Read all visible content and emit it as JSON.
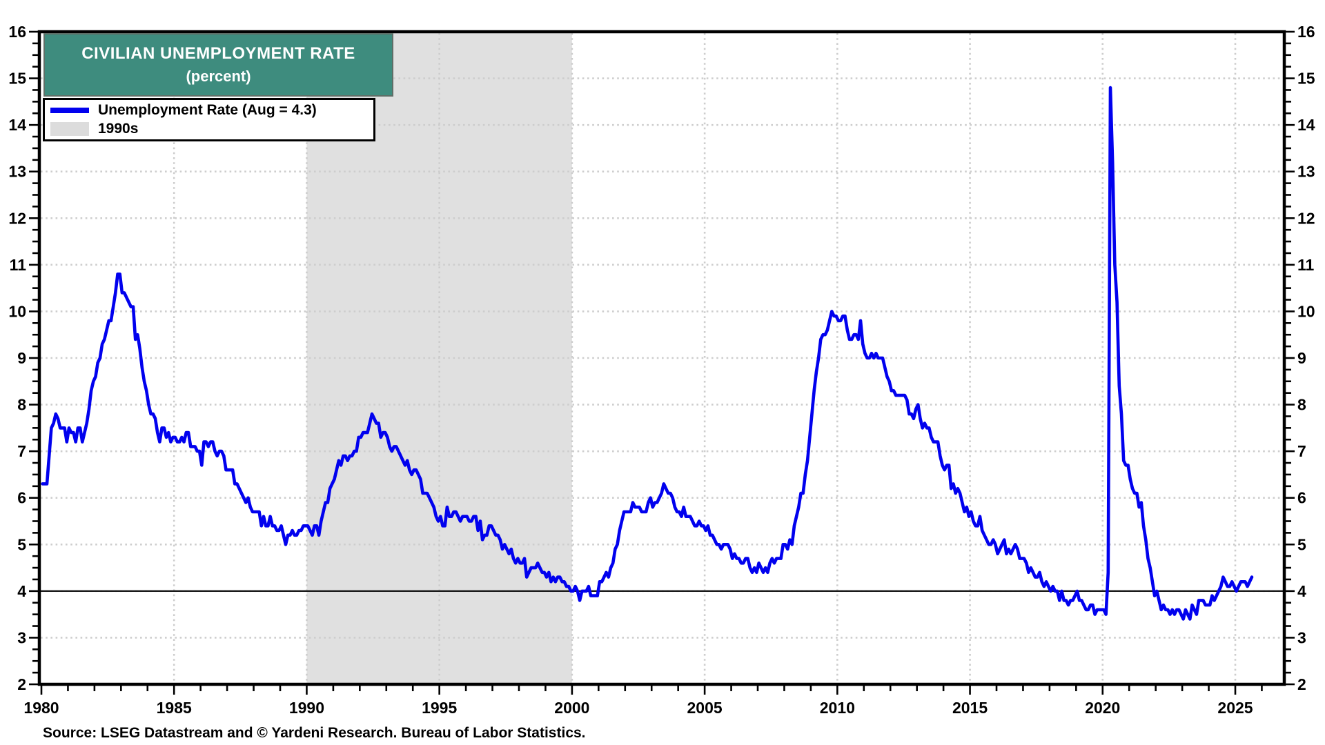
{
  "title": {
    "line1": "CIVILIAN UNEMPLOYMENT RATE",
    "line2": "(percent)"
  },
  "legend": {
    "items": [
      {
        "label": "Unemployment Rate (Aug = 4.3)",
        "swatch": "line",
        "color": "#0101ee"
      },
      {
        "label": "1990s",
        "swatch": "area",
        "color": "#dcdcdc"
      }
    ]
  },
  "source": "Source: LSEG Datastream and © Yardeni Research. Bureau of Labor Statistics.",
  "colors": {
    "title_bg": "#3e8c7e",
    "line": "#0101ee",
    "band": "#e0e0e0",
    "grid": "#cdcdcd",
    "frame": "#000000",
    "reference_line": "#1a1a1a"
  },
  "chart_data": {
    "type": "line",
    "title": "CIVILIAN UNEMPLOYMENT RATE (percent)",
    "legend_position": "top-left",
    "grid": "dotted",
    "x_axis": {
      "min": 1979.9,
      "max": 2026.85,
      "major_ticks": [
        1980,
        1985,
        1990,
        1995,
        2000,
        2005,
        2010,
        2015,
        2020,
        2025
      ],
      "minor_tick_interval_years": 1
    },
    "y_axis": {
      "min": 2,
      "max": 16,
      "major_tick_interval": 1,
      "minor_tick_interval": 0.25,
      "labels_on_both_sides": true
    },
    "reference_line_y": 4,
    "shaded_band": {
      "label": "1990s",
      "x_from": 1990,
      "x_to": 2000
    },
    "series": [
      {
        "name": "Unemployment Rate",
        "frequency": "monthly",
        "start_year": 1980,
        "start_month": 1,
        "end_label": "Aug = 4.3",
        "values": [
          6.3,
          6.3,
          6.3,
          6.9,
          7.5,
          7.6,
          7.8,
          7.7,
          7.5,
          7.5,
          7.5,
          7.2,
          7.5,
          7.4,
          7.4,
          7.2,
          7.5,
          7.5,
          7.2,
          7.4,
          7.6,
          7.9,
          8.3,
          8.5,
          8.6,
          8.9,
          9.0,
          9.3,
          9.4,
          9.6,
          9.8,
          9.8,
          10.1,
          10.4,
          10.8,
          10.8,
          10.4,
          10.4,
          10.3,
          10.2,
          10.1,
          10.1,
          9.4,
          9.5,
          9.2,
          8.8,
          8.5,
          8.3,
          8.0,
          7.8,
          7.8,
          7.7,
          7.4,
          7.2,
          7.5,
          7.5,
          7.3,
          7.4,
          7.2,
          7.3,
          7.3,
          7.2,
          7.2,
          7.3,
          7.2,
          7.4,
          7.4,
          7.1,
          7.1,
          7.1,
          7.0,
          7.0,
          6.7,
          7.2,
          7.2,
          7.1,
          7.2,
          7.2,
          7.0,
          6.9,
          7.0,
          7.0,
          6.9,
          6.6,
          6.6,
          6.6,
          6.6,
          6.3,
          6.3,
          6.2,
          6.1,
          6.0,
          5.9,
          6.0,
          5.8,
          5.7,
          5.7,
          5.7,
          5.7,
          5.4,
          5.6,
          5.4,
          5.4,
          5.6,
          5.4,
          5.4,
          5.3,
          5.3,
          5.4,
          5.2,
          5.0,
          5.2,
          5.2,
          5.3,
          5.2,
          5.2,
          5.3,
          5.3,
          5.4,
          5.4,
          5.4,
          5.3,
          5.2,
          5.4,
          5.4,
          5.2,
          5.5,
          5.7,
          5.9,
          5.9,
          6.2,
          6.3,
          6.4,
          6.6,
          6.8,
          6.7,
          6.9,
          6.9,
          6.8,
          6.9,
          6.9,
          7.0,
          7.0,
          7.3,
          7.3,
          7.4,
          7.4,
          7.4,
          7.6,
          7.8,
          7.7,
          7.6,
          7.6,
          7.3,
          7.4,
          7.4,
          7.3,
          7.1,
          7.0,
          7.1,
          7.1,
          7.0,
          6.9,
          6.8,
          6.7,
          6.8,
          6.6,
          6.5,
          6.6,
          6.6,
          6.5,
          6.4,
          6.1,
          6.1,
          6.1,
          6.0,
          5.9,
          5.8,
          5.6,
          5.5,
          5.6,
          5.4,
          5.4,
          5.8,
          5.6,
          5.6,
          5.7,
          5.7,
          5.6,
          5.5,
          5.6,
          5.6,
          5.6,
          5.5,
          5.5,
          5.6,
          5.6,
          5.3,
          5.5,
          5.1,
          5.2,
          5.2,
          5.4,
          5.4,
          5.3,
          5.2,
          5.2,
          5.1,
          4.9,
          5.0,
          4.9,
          4.8,
          4.9,
          4.7,
          4.6,
          4.7,
          4.6,
          4.6,
          4.7,
          4.3,
          4.4,
          4.5,
          4.5,
          4.5,
          4.6,
          4.5,
          4.4,
          4.4,
          4.3,
          4.4,
          4.2,
          4.3,
          4.2,
          4.3,
          4.3,
          4.2,
          4.2,
          4.1,
          4.1,
          4.0,
          4.0,
          4.1,
          4.0,
          3.8,
          4.0,
          4.0,
          4.0,
          4.1,
          3.9,
          3.9,
          3.9,
          3.9,
          4.2,
          4.2,
          4.3,
          4.4,
          4.3,
          4.5,
          4.6,
          4.9,
          5.0,
          5.3,
          5.5,
          5.7,
          5.7,
          5.7,
          5.7,
          5.9,
          5.8,
          5.8,
          5.8,
          5.7,
          5.7,
          5.7,
          5.9,
          6.0,
          5.8,
          5.9,
          5.9,
          6.0,
          6.1,
          6.3,
          6.2,
          6.1,
          6.1,
          6.0,
          5.8,
          5.7,
          5.7,
          5.6,
          5.8,
          5.6,
          5.6,
          5.6,
          5.5,
          5.4,
          5.4,
          5.5,
          5.4,
          5.4,
          5.3,
          5.4,
          5.2,
          5.2,
          5.1,
          5.0,
          5.0,
          4.9,
          5.0,
          5.0,
          5.0,
          4.9,
          4.7,
          4.8,
          4.7,
          4.7,
          4.6,
          4.6,
          4.7,
          4.7,
          4.5,
          4.4,
          4.5,
          4.4,
          4.6,
          4.5,
          4.4,
          4.5,
          4.4,
          4.6,
          4.7,
          4.6,
          4.7,
          4.7,
          4.7,
          5.0,
          5.0,
          4.9,
          5.1,
          5.0,
          5.4,
          5.6,
          5.8,
          6.1,
          6.1,
          6.5,
          6.8,
          7.3,
          7.8,
          8.3,
          8.7,
          9.0,
          9.4,
          9.5,
          9.5,
          9.6,
          9.8,
          10.0,
          9.9,
          9.9,
          9.8,
          9.8,
          9.9,
          9.9,
          9.6,
          9.4,
          9.4,
          9.5,
          9.5,
          9.4,
          9.8,
          9.3,
          9.1,
          9.0,
          9.0,
          9.1,
          9.0,
          9.1,
          9.0,
          9.0,
          9.0,
          8.8,
          8.6,
          8.5,
          8.3,
          8.3,
          8.2,
          8.2,
          8.2,
          8.2,
          8.2,
          8.1,
          7.8,
          7.8,
          7.7,
          7.9,
          8.0,
          7.7,
          7.5,
          7.6,
          7.5,
          7.5,
          7.3,
          7.2,
          7.2,
          7.2,
          6.9,
          6.7,
          6.6,
          6.7,
          6.7,
          6.2,
          6.3,
          6.1,
          6.2,
          6.1,
          5.9,
          5.7,
          5.8,
          5.6,
          5.7,
          5.5,
          5.4,
          5.4,
          5.6,
          5.3,
          5.2,
          5.1,
          5.0,
          5.0,
          5.1,
          5.0,
          4.8,
          4.9,
          5.0,
          5.1,
          4.8,
          4.9,
          4.8,
          4.9,
          5.0,
          4.9,
          4.7,
          4.7,
          4.7,
          4.6,
          4.4,
          4.5,
          4.4,
          4.3,
          4.3,
          4.4,
          4.2,
          4.1,
          4.2,
          4.1,
          4.0,
          4.1,
          4.0,
          4.0,
          3.8,
          4.0,
          3.8,
          3.8,
          3.7,
          3.8,
          3.8,
          3.9,
          4.0,
          3.8,
          3.8,
          3.7,
          3.6,
          3.6,
          3.7,
          3.7,
          3.5,
          3.6,
          3.6,
          3.6,
          3.6,
          3.5,
          4.4,
          14.8,
          13.2,
          11.0,
          10.2,
          8.4,
          7.8,
          6.8,
          6.7,
          6.7,
          6.4,
          6.2,
          6.1,
          6.1,
          5.8,
          5.9,
          5.4,
          5.1,
          4.7,
          4.5,
          4.2,
          3.9,
          4.0,
          3.8,
          3.6,
          3.7,
          3.6,
          3.6,
          3.5,
          3.6,
          3.5,
          3.6,
          3.6,
          3.5,
          3.4,
          3.6,
          3.5,
          3.4,
          3.7,
          3.6,
          3.5,
          3.8,
          3.8,
          3.8,
          3.7,
          3.7,
          3.7,
          3.9,
          3.8,
          3.9,
          4.0,
          4.1,
          4.3,
          4.2,
          4.1,
          4.1,
          4.2,
          4.1,
          4.0,
          4.1,
          4.2,
          4.2,
          4.2,
          4.1,
          4.2,
          4.3
        ]
      }
    ]
  }
}
